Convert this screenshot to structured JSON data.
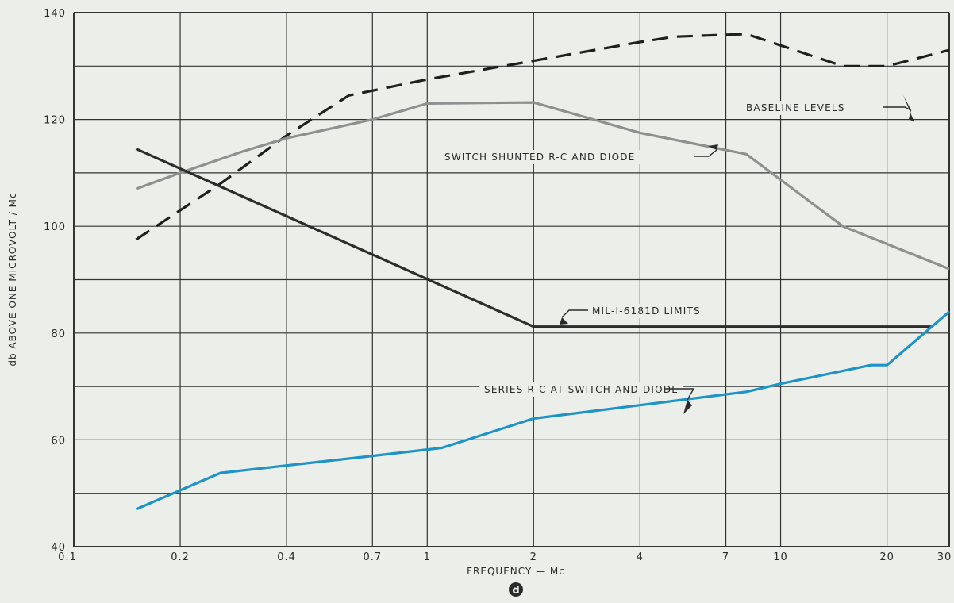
{
  "chart_data": {
    "type": "line",
    "xscale": "log",
    "xlim": [
      0.1,
      30
    ],
    "ylim": [
      40,
      140
    ],
    "grid": true,
    "xlabel": "FREQUENCY — Mc",
    "ylabel": "db ABOVE ONE MICROVOLT / Mc",
    "panel_label": "d",
    "x_ticks": [
      {
        "value": 0.1,
        "label": "0.1"
      },
      {
        "value": 0.2,
        "label": "0.2"
      },
      {
        "value": 0.4,
        "label": "0.4"
      },
      {
        "value": 0.7,
        "label": "0.7"
      },
      {
        "value": 1,
        "label": "1"
      },
      {
        "value": 2,
        "label": "2"
      },
      {
        "value": 4,
        "label": "4"
      },
      {
        "value": 7,
        "label": "7"
      },
      {
        "value": 10,
        "label": "10"
      },
      {
        "value": 20,
        "label": "20"
      },
      {
        "value": 30,
        "label": "30"
      }
    ],
    "y_ticks": [
      {
        "value": 40,
        "label": "40"
      },
      {
        "value": 60,
        "label": "60"
      },
      {
        "value": 80,
        "label": "80"
      },
      {
        "value": 100,
        "label": "100"
      },
      {
        "value": 120,
        "label": "120"
      },
      {
        "value": 140,
        "label": "140"
      }
    ],
    "series": [
      {
        "name": "BASELINE LEVELS",
        "style": "dashed",
        "color": "#1f1f1f",
        "points": [
          [
            0.15,
            97.5
          ],
          [
            0.26,
            108
          ],
          [
            0.4,
            117
          ],
          [
            0.6,
            124.5
          ],
          [
            1,
            127.5
          ],
          [
            2,
            131
          ],
          [
            4,
            134.5
          ],
          [
            5,
            135.5
          ],
          [
            8,
            136
          ],
          [
            15,
            130
          ],
          [
            20,
            130
          ],
          [
            30,
            133
          ]
        ]
      },
      {
        "name": "SWITCH SHUNTED R-C AND DIODE",
        "style": "solid",
        "color": "#8f8f8f",
        "points": [
          [
            0.15,
            107
          ],
          [
            0.2,
            110
          ],
          [
            0.3,
            114
          ],
          [
            0.4,
            116.5
          ],
          [
            0.7,
            120
          ],
          [
            1,
            123
          ],
          [
            2,
            123.2
          ],
          [
            4,
            117.5
          ],
          [
            8,
            113.5
          ],
          [
            15,
            100
          ],
          [
            30,
            92
          ]
        ]
      },
      {
        "name": "MIL-I-6181D LIMITS",
        "style": "solid",
        "color": "#2d2d2d",
        "points": [
          [
            0.15,
            114.5
          ],
          [
            2,
            81.2
          ],
          [
            27,
            81.2
          ]
        ]
      },
      {
        "name": "SERIES R-C AT SWITCH AND DIODE",
        "style": "solid",
        "color": "#1e93c8",
        "points": [
          [
            0.15,
            47
          ],
          [
            0.26,
            53.8
          ],
          [
            0.4,
            55.2
          ],
          [
            0.7,
            57
          ],
          [
            1.1,
            58.5
          ],
          [
            2,
            64
          ],
          [
            4,
            66.5
          ],
          [
            8,
            69
          ],
          [
            10,
            70.5
          ],
          [
            18,
            74
          ],
          [
            20,
            74
          ],
          [
            30,
            84
          ]
        ]
      }
    ],
    "annotations": [
      {
        "text": "BASELINE LEVELS",
        "series": 0
      },
      {
        "text": "SWITCH SHUNTED R-C AND DIODE",
        "series": 1
      },
      {
        "text": "MIL-I-6181D LIMITS",
        "series": 2
      },
      {
        "text": "SERIES R-C AT SWITCH AND DIODE",
        "series": 3
      }
    ]
  }
}
